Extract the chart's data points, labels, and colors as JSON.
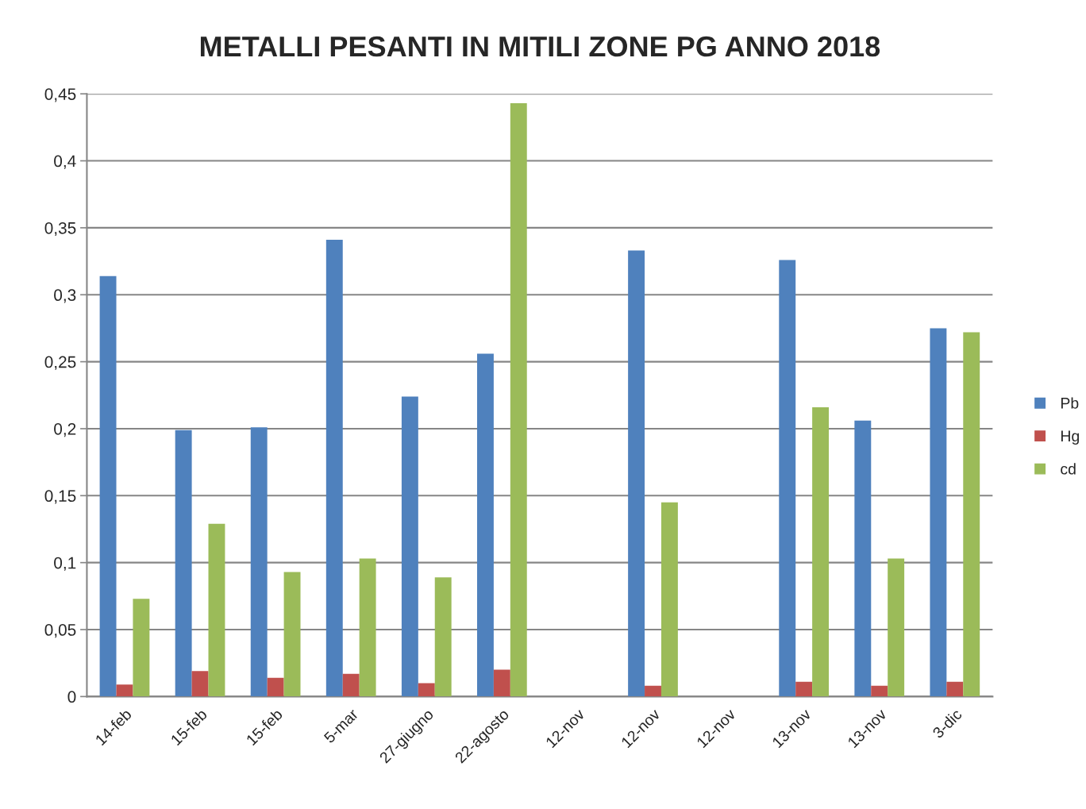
{
  "chart_data": {
    "type": "bar",
    "title": "METALLI PESANTI IN MITILI ZONE PG ANNO 2018",
    "categories": [
      "14-feb",
      "15-feb",
      "15-feb",
      "5-mar",
      "27-giugno",
      "22-agosto",
      "12-nov",
      "12-nov",
      "12-nov",
      "13-nov",
      "13-nov",
      "3-dic"
    ],
    "series": [
      {
        "name": "Pb",
        "color": "#4f81bd",
        "values": [
          0.314,
          0.199,
          0.201,
          0.341,
          0.224,
          0.256,
          null,
          0.333,
          null,
          0.326,
          0.206,
          0.275
        ]
      },
      {
        "name": "Hg",
        "color": "#c0504d",
        "values": [
          0.009,
          0.019,
          0.014,
          0.017,
          0.01,
          0.02,
          null,
          0.008,
          null,
          0.011,
          0.008,
          0.011
        ]
      },
      {
        "name": "cd",
        "color": "#9bbb59",
        "values": [
          0.073,
          0.129,
          0.093,
          0.103,
          0.089,
          0.443,
          null,
          0.145,
          null,
          0.216,
          0.103,
          0.272
        ]
      }
    ],
    "ylim": [
      0,
      0.45
    ],
    "yticks": [
      0,
      {
        "value": 0.05,
        "label": "0,05"
      },
      {
        "value": 0.1,
        "label": "0,1"
      },
      {
        "value": 0.15,
        "label": "0,15"
      },
      {
        "value": 0.2,
        "label": "0,2"
      },
      {
        "value": 0.25,
        "label": "0,25"
      },
      {
        "value": 0.3,
        "label": "0,3"
      },
      {
        "value": 0.35,
        "label": "0,35"
      },
      {
        "value": 0.4,
        "label": "0,4"
      },
      {
        "value": 0.45,
        "label": "0,45"
      }
    ],
    "grid": "y",
    "legend": "right"
  }
}
